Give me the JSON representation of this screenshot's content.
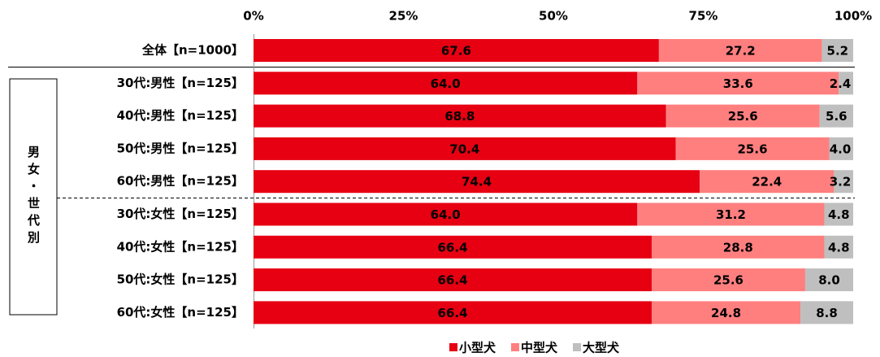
{
  "chart_data": {
    "type": "stacked-bar-horizontal",
    "group_label": "男女・世代別",
    "categories": [
      "全体【n=1000】",
      "30代:男性【n=125】",
      "40代:男性【n=125】",
      "50代:男性【n=125】",
      "60代:男性【n=125】",
      "30代:女性【n=125】",
      "40代:女性【n=125】",
      "50代:女性【n=125】",
      "60代:女性【n=125】"
    ],
    "series": [
      {
        "name": "小型犬",
        "color": "#e60012",
        "values": [
          67.6,
          64.0,
          68.8,
          70.4,
          74.4,
          64.0,
          66.4,
          66.4,
          66.4
        ],
        "value_labels": [
          "67.6",
          "64.0",
          "68.8",
          "70.4",
          "74.4",
          "64.0",
          "66.4",
          "66.4",
          "66.4"
        ]
      },
      {
        "name": "中型犬",
        "color": "#ff7f7f",
        "values": [
          27.2,
          33.6,
          25.6,
          25.6,
          22.4,
          31.2,
          28.8,
          25.6,
          24.8
        ],
        "value_labels": [
          "27.2",
          "33.6",
          "25.6",
          "25.6",
          "22.4",
          "31.2",
          "28.8",
          "25.6",
          "24.8"
        ]
      },
      {
        "name": "大型犬",
        "color": "#bfbfbf",
        "values": [
          5.2,
          2.4,
          5.6,
          4.0,
          3.2,
          4.8,
          4.8,
          8.0,
          8.8
        ],
        "value_labels": [
          "5.2",
          "2.4",
          "5.6",
          "4.0",
          "3.2",
          "4.8",
          "4.8",
          "8.0",
          "8.8"
        ]
      }
    ],
    "xlim": [
      0,
      100
    ],
    "xticks": [
      {
        "value": 0,
        "label": "0%"
      },
      {
        "value": 25,
        "label": "25%"
      },
      {
        "value": 50,
        "label": "50%"
      },
      {
        "value": 75,
        "label": "75%"
      },
      {
        "value": 100,
        "label": "100%"
      }
    ],
    "grid": false,
    "legend": "bottom"
  }
}
